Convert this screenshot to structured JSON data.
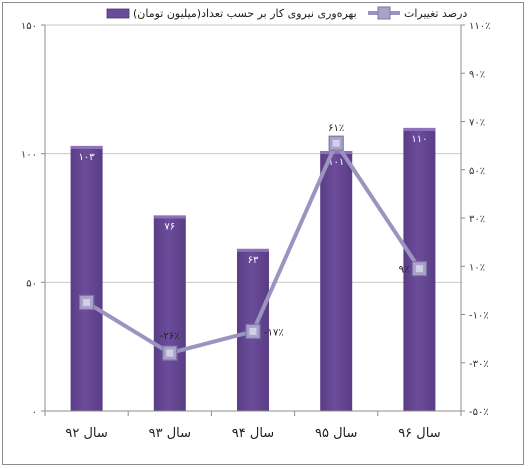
{
  "chart_data": {
    "type": "bar",
    "categories": [
      "سال ۹۲",
      "سال ۹۳",
      "سال ۹۴",
      "سال ۹۵",
      "سال ۹۶"
    ],
    "series": [
      {
        "name": "بهره‌وری نیروی کار بر حسب تعداد(میلیون تومان)",
        "type": "bar",
        "axis": "left",
        "color": "#6b4c9a",
        "values": [
          103,
          76,
          63,
          101,
          110
        ],
        "labels": [
          "۱۰۳",
          "۷۶",
          "۶۳",
          "۱۰۱",
          "۱۱۰"
        ]
      },
      {
        "name": "درصد تغییرات",
        "type": "line",
        "axis": "right",
        "color": "#9c94c0",
        "values": [
          -5,
          -26,
          -17,
          61,
          9
        ],
        "labels": [
          "",
          "-۲۶٪",
          "-۱۷٪",
          "۶۱٪",
          "۹٪"
        ]
      }
    ],
    "y_left": {
      "range": [
        0,
        150
      ],
      "ticks": [
        0,
        50,
        100,
        150
      ],
      "tick_labels": [
        "۰",
        "۵۰",
        "۱۰۰",
        "۱۵۰"
      ]
    },
    "y_right": {
      "range": [
        -50,
        110
      ],
      "ticks": [
        -50,
        -30,
        -10,
        10,
        30,
        50,
        70,
        90,
        110
      ],
      "tick_labels": [
        "-۵۰٪",
        "-۳۰٪",
        "-۱۰٪",
        "۱۰٪",
        "۳۰٪",
        "۵۰٪",
        "۷۰٪",
        "۹۰٪",
        "۱۱۰٪"
      ]
    },
    "grid": true,
    "legend": "top"
  }
}
